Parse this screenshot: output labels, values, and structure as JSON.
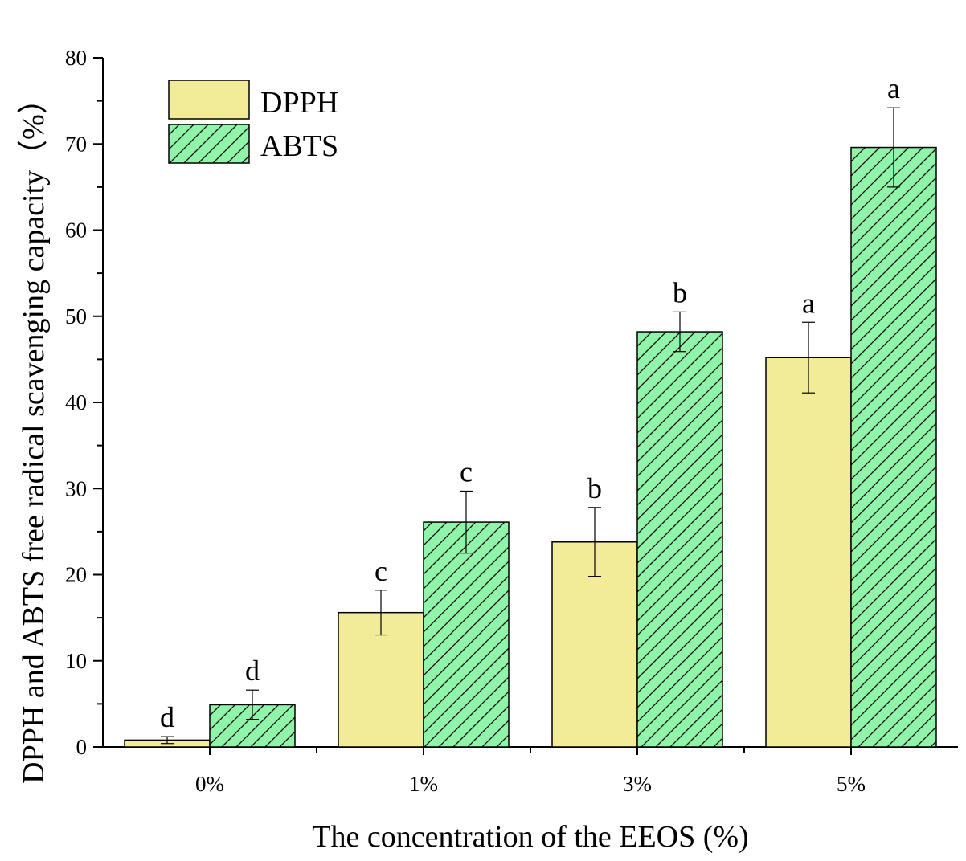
{
  "chart_data": {
    "type": "bar",
    "xlabel": "The concentration of the EEOS (%)",
    "ylabel": "DPPH and ABTS free radical scavenging capacity（%）",
    "categories": [
      "0%",
      "1%",
      "3%",
      "5%"
    ],
    "ylim": [
      0,
      80
    ],
    "yticks": [
      0,
      10,
      20,
      30,
      40,
      50,
      60,
      70,
      80
    ],
    "grid": false,
    "legend_position": "top-left",
    "series": [
      {
        "name": "DPPH",
        "color": "#f2ec99",
        "pattern": "solid",
        "values": [
          0.8,
          15.6,
          23.8,
          45.2
        ],
        "errors": [
          0.4,
          2.6,
          4.0,
          4.1
        ],
        "letters": [
          "d",
          "c",
          "b",
          "a"
        ]
      },
      {
        "name": "ABTS",
        "color": "#8ff5a8",
        "pattern": "diagonal-hatch",
        "values": [
          4.9,
          26.1,
          48.2,
          69.6
        ],
        "errors": [
          1.7,
          3.6,
          2.3,
          4.6
        ],
        "letters": [
          "d",
          "c",
          "b",
          "a"
        ]
      }
    ]
  }
}
